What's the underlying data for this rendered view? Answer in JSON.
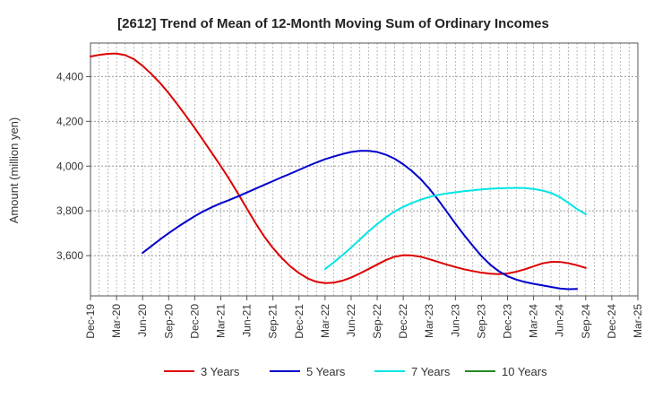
{
  "chart_data": {
    "type": "line",
    "title": "[2612]  Trend of Mean of 12-Month Moving Sum of Ordinary Incomes",
    "xlabel": "",
    "ylabel": "Amount (million yen)",
    "ylim": [
      3420,
      4550
    ],
    "yticks": [
      3600,
      3800,
      4000,
      4200,
      4400
    ],
    "ytick_labels": [
      "3,600",
      "3,800",
      "4,000",
      "4,200",
      "4,400"
    ],
    "x_start_index": 0,
    "x_end_index": 63,
    "categories": [
      "Dec-19",
      "Mar-20",
      "Jun-20",
      "Sep-20",
      "Dec-20",
      "Mar-21",
      "Jun-21",
      "Sep-21",
      "Dec-21",
      "Mar-22",
      "Jun-22",
      "Sep-22",
      "Dec-22",
      "Mar-23",
      "Jun-23",
      "Sep-23",
      "Dec-23",
      "Mar-24",
      "Jun-24",
      "Sep-24",
      "Dec-24",
      "Mar-25"
    ],
    "grid": true,
    "legend_position": "bottom",
    "series": [
      {
        "name": "3 Years",
        "color": "#dd0000",
        "points": [
          [
            0,
            4490
          ],
          [
            1,
            4497
          ],
          [
            2,
            4502
          ],
          [
            3,
            4503
          ],
          [
            4,
            4496
          ],
          [
            5,
            4478
          ],
          [
            6,
            4448
          ],
          [
            7,
            4412
          ],
          [
            8,
            4372
          ],
          [
            9,
            4326
          ],
          [
            10,
            4276
          ],
          [
            11,
            4224
          ],
          [
            12,
            4170
          ],
          [
            13,
            4114
          ],
          [
            14,
            4057
          ],
          [
            15,
            4000
          ],
          [
            16,
            3940
          ],
          [
            17,
            3876
          ],
          [
            18,
            3810
          ],
          [
            19,
            3745
          ],
          [
            20,
            3685
          ],
          [
            21,
            3634
          ],
          [
            22,
            3590
          ],
          [
            23,
            3552
          ],
          [
            24,
            3522
          ],
          [
            25,
            3498
          ],
          [
            26,
            3483
          ],
          [
            27,
            3477
          ],
          [
            28,
            3479
          ],
          [
            29,
            3488
          ],
          [
            30,
            3502
          ],
          [
            31,
            3520
          ],
          [
            32,
            3540
          ],
          [
            33,
            3560
          ],
          [
            34,
            3580
          ],
          [
            35,
            3595
          ],
          [
            36,
            3602
          ],
          [
            37,
            3601
          ],
          [
            38,
            3595
          ],
          [
            39,
            3584
          ],
          [
            40,
            3572
          ],
          [
            41,
            3560
          ],
          [
            42,
            3549
          ],
          [
            43,
            3539
          ],
          [
            44,
            3531
          ],
          [
            45,
            3524
          ],
          [
            46,
            3519
          ],
          [
            47,
            3517
          ],
          [
            48,
            3520
          ],
          [
            49,
            3528
          ],
          [
            50,
            3539
          ],
          [
            51,
            3552
          ],
          [
            52,
            3565
          ],
          [
            53,
            3572
          ],
          [
            54,
            3572
          ],
          [
            55,
            3566
          ],
          [
            56,
            3557
          ],
          [
            57,
            3545
          ]
        ]
      },
      {
        "name": "5 Years",
        "color": "#0000cc",
        "points": [
          [
            6,
            3612
          ],
          [
            7,
            3642
          ],
          [
            8,
            3672
          ],
          [
            9,
            3700
          ],
          [
            10,
            3727
          ],
          [
            11,
            3752
          ],
          [
            12,
            3776
          ],
          [
            13,
            3798
          ],
          [
            14,
            3817
          ],
          [
            15,
            3834
          ],
          [
            16,
            3849
          ],
          [
            17,
            3865
          ],
          [
            18,
            3882
          ],
          [
            19,
            3899
          ],
          [
            20,
            3916
          ],
          [
            21,
            3933
          ],
          [
            22,
            3950
          ],
          [
            23,
            3966
          ],
          [
            24,
            3983
          ],
          [
            25,
            4000
          ],
          [
            26,
            4016
          ],
          [
            27,
            4031
          ],
          [
            28,
            4043
          ],
          [
            29,
            4054
          ],
          [
            30,
            4063
          ],
          [
            31,
            4068
          ],
          [
            32,
            4068
          ],
          [
            33,
            4063
          ],
          [
            34,
            4051
          ],
          [
            35,
            4033
          ],
          [
            36,
            4008
          ],
          [
            37,
            3978
          ],
          [
            38,
            3942
          ],
          [
            39,
            3899
          ],
          [
            40,
            3850
          ],
          [
            41,
            3797
          ],
          [
            42,
            3743
          ],
          [
            43,
            3692
          ],
          [
            44,
            3644
          ],
          [
            45,
            3598
          ],
          [
            46,
            3560
          ],
          [
            47,
            3530
          ],
          [
            48,
            3508
          ],
          [
            49,
            3493
          ],
          [
            50,
            3482
          ],
          [
            51,
            3474
          ],
          [
            52,
            3467
          ],
          [
            53,
            3460
          ],
          [
            54,
            3453
          ],
          [
            55,
            3450
          ],
          [
            56,
            3451
          ]
        ]
      },
      {
        "name": "7 Years",
        "color": "#00e5e5",
        "points": [
          [
            27,
            3540
          ],
          [
            28,
            3570
          ],
          [
            29,
            3602
          ],
          [
            30,
            3636
          ],
          [
            31,
            3672
          ],
          [
            32,
            3708
          ],
          [
            33,
            3741
          ],
          [
            34,
            3771
          ],
          [
            35,
            3797
          ],
          [
            36,
            3818
          ],
          [
            37,
            3835
          ],
          [
            38,
            3850
          ],
          [
            39,
            3862
          ],
          [
            40,
            3871
          ],
          [
            41,
            3878
          ],
          [
            42,
            3883
          ],
          [
            43,
            3888
          ],
          [
            44,
            3892
          ],
          [
            45,
            3896
          ],
          [
            46,
            3899
          ],
          [
            47,
            3901
          ],
          [
            48,
            3902
          ],
          [
            49,
            3903
          ],
          [
            50,
            3902
          ],
          [
            51,
            3898
          ],
          [
            52,
            3891
          ],
          [
            53,
            3880
          ],
          [
            54,
            3862
          ],
          [
            55,
            3836
          ],
          [
            56,
            3808
          ],
          [
            57,
            3785
          ]
        ]
      },
      {
        "name": "10 Years",
        "color": "#228b22",
        "points": []
      }
    ]
  }
}
